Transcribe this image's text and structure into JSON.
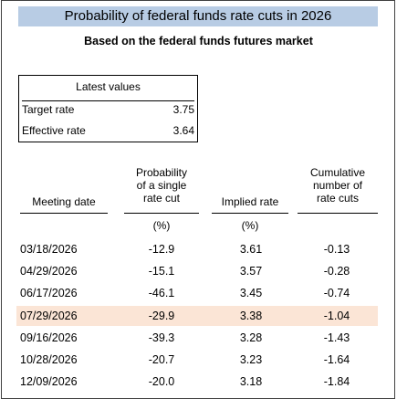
{
  "chart_data": {
    "type": "table",
    "title": "Probability of federal funds rate cuts in 2026",
    "subtitle": "Based on the federal funds futures market",
    "latest_values": {
      "heading": "Latest values",
      "rows": [
        {
          "label": "Target rate",
          "value": "3.75"
        },
        {
          "label": "Effective rate",
          "value": "3.64"
        }
      ]
    },
    "columns": [
      {
        "header": [
          "Meeting date"
        ],
        "unit": ""
      },
      {
        "header": [
          "Probability",
          "of a single",
          "rate cut"
        ],
        "unit": "(%)"
      },
      {
        "header": [
          "Implied rate"
        ],
        "unit": "(%)"
      },
      {
        "header": [
          "Cumulative",
          "number of",
          "rate cuts"
        ],
        "unit": ""
      }
    ],
    "rows": [
      {
        "date": "03/18/2026",
        "probability": "-12.9",
        "implied_rate": "3.61",
        "cumulative": "-0.13",
        "highlight": false
      },
      {
        "date": "04/29/2026",
        "probability": "-15.1",
        "implied_rate": "3.57",
        "cumulative": "-0.28",
        "highlight": false
      },
      {
        "date": "06/17/2026",
        "probability": "-46.1",
        "implied_rate": "3.45",
        "cumulative": "-0.74",
        "highlight": false
      },
      {
        "date": "07/29/2026",
        "probability": "-29.9",
        "implied_rate": "3.38",
        "cumulative": "-1.04",
        "highlight": true
      },
      {
        "date": "09/16/2026",
        "probability": "-39.3",
        "implied_rate": "3.28",
        "cumulative": "-1.43",
        "highlight": false
      },
      {
        "date": "10/28/2026",
        "probability": "-20.7",
        "implied_rate": "3.23",
        "cumulative": "-1.64",
        "highlight": false
      },
      {
        "date": "12/09/2026",
        "probability": "-20.0",
        "implied_rate": "3.18",
        "cumulative": "-1.84",
        "highlight": false
      }
    ],
    "colors": {
      "title_band": "#b8cce4",
      "highlight_row": "#fbe5d6"
    }
  }
}
